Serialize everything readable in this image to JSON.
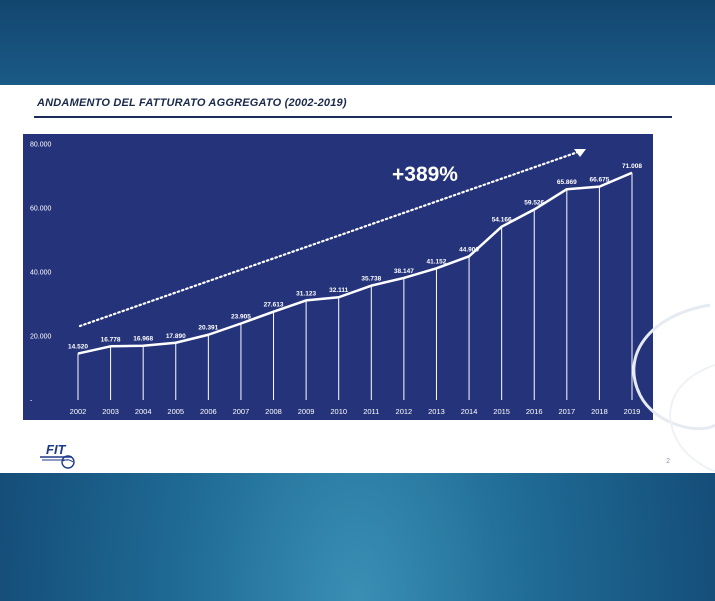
{
  "slide": {
    "title": "ANDAMENTO DEL FATTURATO AGGREGATO (2002-2019)",
    "page_number": "2",
    "logo_text": "FIT"
  },
  "colors": {
    "chart_background": "#25337a",
    "line": "#ffffff",
    "title_rule": "#1c2b5a"
  },
  "chart_data": {
    "type": "area",
    "title": "",
    "categories": [
      "2002",
      "2003",
      "2004",
      "2005",
      "2006",
      "2007",
      "2008",
      "2009",
      "2010",
      "2011",
      "2012",
      "2013",
      "2014",
      "2015",
      "2016",
      "2017",
      "2018",
      "2019"
    ],
    "series": [
      {
        "values": [
          14520,
          16778,
          16968,
          17890,
          20391,
          23905,
          27613,
          31123,
          32111,
          35738,
          38147,
          41152,
          44900,
          54166,
          59526,
          65869,
          66675,
          71008
        ]
      }
    ],
    "data_labels": [
      "14.520",
      "16.778",
      "16.968",
      "17.890",
      "20.391",
      "23.905",
      "27.613",
      "31.123",
      "32.111",
      "35.738",
      "38.147",
      "41.152",
      "44.900",
      "54.166",
      "59.526",
      "65.869",
      "66.675",
      "71.008"
    ],
    "y_ticks": [
      0,
      20000,
      40000,
      60000,
      80000
    ],
    "y_tick_labels": [
      "-",
      "20.000",
      "40.000",
      "60.000",
      "80.000"
    ],
    "ylim": [
      0,
      80000
    ],
    "xlabel": "",
    "ylabel": "",
    "grid": false,
    "annotation": "+389%"
  }
}
